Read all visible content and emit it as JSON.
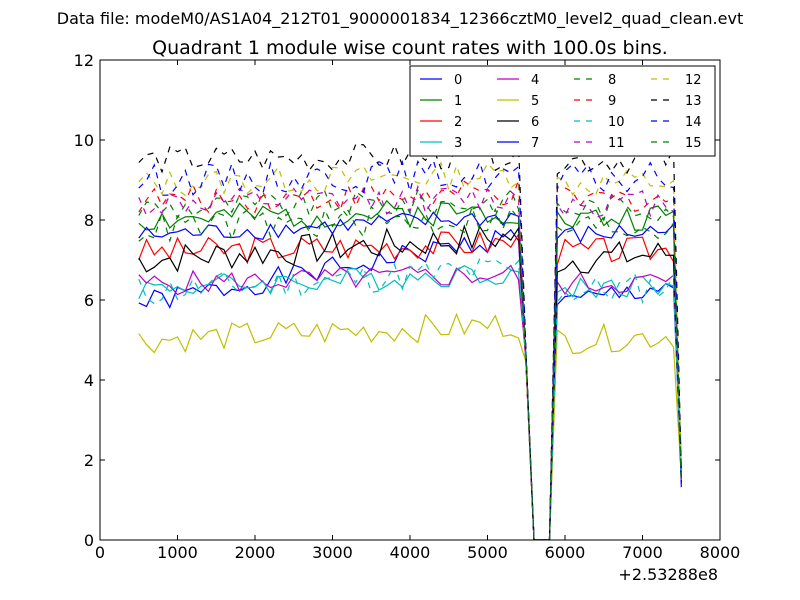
{
  "chart_data": {
    "type": "line",
    "suptitle": "Data file: modeM0/AS1A04_212T01_9000001834_12366cztM0_level2_quad_clean.evt",
    "title": "Quadrant 1 module wise count rates with 100.0s bins.",
    "xlabel": "",
    "ylabel": "",
    "x_offset_label": "+2.53288e8",
    "xlim": [
      0,
      8000
    ],
    "ylim": [
      0,
      12
    ],
    "xticks": [
      0,
      1000,
      2000,
      3000,
      4000,
      5000,
      6000,
      7000,
      8000
    ],
    "yticks": [
      0,
      2,
      4,
      6,
      8,
      10,
      12
    ],
    "grid": false,
    "legend_position": "top-right",
    "x_start": 500,
    "x_step": 100,
    "x_end": 7500,
    "gap": [
      5600,
      5800
    ],
    "series": [
      {
        "name": "0",
        "color": "#0000ff",
        "style": "solid",
        "base": 5.9,
        "amp": 0.3,
        "drift": 0.00035,
        "seed": 1
      },
      {
        "name": "1",
        "color": "#008000",
        "style": "solid",
        "base": 8.0,
        "amp": 0.35,
        "drift": 5e-05,
        "seed": 2
      },
      {
        "name": "2",
        "color": "#ff0000",
        "style": "solid",
        "base": 7.2,
        "amp": 0.35,
        "drift": 5e-05,
        "seed": 3
      },
      {
        "name": "3",
        "color": "#00bfbf",
        "style": "solid",
        "base": 6.3,
        "amp": 0.3,
        "drift": 8e-05,
        "seed": 4
      },
      {
        "name": "4",
        "color": "#bf00bf",
        "style": "solid",
        "base": 6.4,
        "amp": 0.3,
        "drift": 5e-05,
        "seed": 5
      },
      {
        "name": "5",
        "color": "#bfbf00",
        "style": "solid",
        "base": 5.0,
        "amp": 0.35,
        "drift": 8e-05,
        "seed": 6
      },
      {
        "name": "6",
        "color": "#000000",
        "style": "solid",
        "base": 7.0,
        "amp": 0.4,
        "drift": 0.00012,
        "seed": 7
      },
      {
        "name": "7",
        "color": "#0000ff",
        "style": "solid",
        "base": 7.6,
        "amp": 0.25,
        "drift": 0.0001,
        "seed": 8
      },
      {
        "name": "8",
        "color": "#008000",
        "style": "dashed",
        "base": 8.3,
        "amp": 0.35,
        "drift": 3e-05,
        "seed": 9
      },
      {
        "name": "9",
        "color": "#ff0000",
        "style": "dashed",
        "base": 8.5,
        "amp": 0.35,
        "drift": 3e-05,
        "seed": 10
      },
      {
        "name": "10",
        "color": "#00bfbf",
        "style": "dashed",
        "base": 6.2,
        "amp": 0.4,
        "drift": 0.00012,
        "seed": 11
      },
      {
        "name": "11",
        "color": "#bf00bf",
        "style": "dashed",
        "base": 8.4,
        "amp": 0.35,
        "drift": 3e-05,
        "seed": 12
      },
      {
        "name": "12",
        "color": "#bfbf00",
        "style": "dashed",
        "base": 8.9,
        "amp": 0.35,
        "drift": 5e-05,
        "seed": 13
      },
      {
        "name": "13",
        "color": "#000000",
        "style": "dashed",
        "base": 9.5,
        "amp": 0.35,
        "drift": 2e-05,
        "seed": 14
      },
      {
        "name": "14",
        "color": "#0000ff",
        "style": "dashed",
        "base": 9.0,
        "amp": 0.4,
        "drift": 3e-05,
        "seed": 15
      },
      {
        "name": "15",
        "color": "#008000",
        "style": "dashed",
        "base": 7.8,
        "amp": 0.4,
        "drift": 5e-05,
        "seed": 16
      }
    ]
  }
}
